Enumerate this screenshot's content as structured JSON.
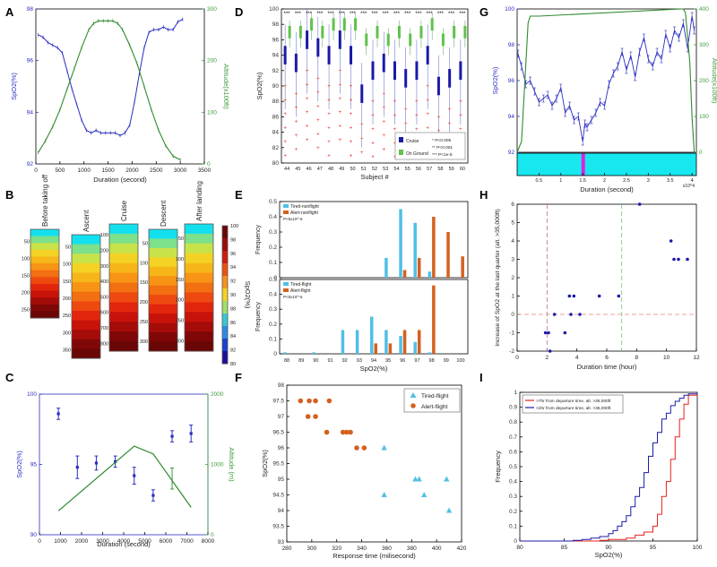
{
  "panels": [
    "A",
    "B",
    "C",
    "D",
    "E",
    "F",
    "G",
    "H",
    "I"
  ],
  "colors": {
    "blue": "#2a2ec0",
    "green": "#2e8b2e",
    "red": "#e8221b",
    "cyan": "#4fbfe6",
    "orange": "#d4601f",
    "darkblue": "#1a1aa8",
    "axis_green": "#3a9a3a",
    "magenta": "#e020e0",
    "cyan_band": "#17e8f0"
  },
  "chart_data": [
    {
      "id": "A",
      "type": "line",
      "xlabel": "Duration (second)",
      "ylabel": "SpO2(%)",
      "y2label": "Altitude(x100ft)",
      "xticks": [
        "0",
        "500",
        "1000",
        "1500",
        "2000",
        "2500",
        "3000",
        "3500"
      ],
      "yticks": [
        "92",
        "94",
        "96",
        "98"
      ],
      "y2ticks": [
        "0",
        "100",
        "200",
        "300"
      ],
      "xlim": [
        0,
        3500
      ],
      "ylim": [
        92,
        98
      ],
      "y2lim": [
        0,
        300
      ],
      "series": [
        {
          "name": "SpO2",
          "axis": "left",
          "x": [
            50,
            150,
            250,
            350,
            450,
            550,
            650,
            750,
            850,
            950,
            1050,
            1150,
            1250,
            1350,
            1450,
            1550,
            1650,
            1750,
            1850,
            1950,
            2050,
            2150,
            2250,
            2350,
            2450,
            2550,
            2650,
            2750,
            2850,
            2950,
            3050
          ],
          "values": [
            97.0,
            96.9,
            96.7,
            96.6,
            96.5,
            96.3,
            95.6,
            94.9,
            94.3,
            93.7,
            93.3,
            93.2,
            93.3,
            93.2,
            93.2,
            93.2,
            93.2,
            93.1,
            93.2,
            93.5,
            94.4,
            95.5,
            96.5,
            97.1,
            97.2,
            97.2,
            97.3,
            97.2,
            97.2,
            97.5,
            97.6
          ]
        },
        {
          "name": "Altitude",
          "axis": "right",
          "x": [
            50,
            200,
            350,
            500,
            650,
            800,
            950,
            1100,
            1200,
            1300,
            1400,
            1500,
            1600,
            1700,
            1800,
            1950,
            2100,
            2250,
            2400,
            2550,
            2700,
            2850,
            3000
          ],
          "values": [
            22,
            45,
            72,
            105,
            145,
            185,
            225,
            260,
            272,
            277,
            277,
            277,
            277,
            272,
            260,
            230,
            195,
            150,
            105,
            65,
            35,
            15,
            8
          ]
        }
      ]
    },
    {
      "id": "B",
      "type": "heatmap",
      "columns": [
        "Before taking off",
        "Ascent",
        "Cruise",
        "Descent",
        "After landing"
      ],
      "ytick_sets": [
        [
          "50",
          "100",
          "150",
          "200",
          "250"
        ],
        [
          "50",
          "100",
          "150",
          "200",
          "250",
          "300",
          "350"
        ],
        [
          "100",
          "200",
          "300",
          "400",
          "500",
          "600",
          "700",
          "800"
        ],
        [
          "50",
          "100",
          "150",
          "200",
          "250",
          "300"
        ],
        [
          "50",
          "100",
          "150",
          "200",
          "250",
          "300"
        ]
      ],
      "colorbar": {
        "label": "SpO2(%)",
        "ticks": [
          "80",
          "82",
          "84",
          "86",
          "88",
          "90",
          "92",
          "94",
          "96",
          "98",
          "100"
        ]
      }
    },
    {
      "id": "C",
      "type": "errorbar-line",
      "xlabel": "Duration (second)",
      "ylabel": "SpO2(%)",
      "y2label": "Altitude (m)",
      "xticks": [
        "0",
        "1000",
        "2000",
        "3000",
        "4000",
        "5000",
        "6000",
        "7000",
        "8000"
      ],
      "yticks": [
        "90",
        "95",
        "100"
      ],
      "y2ticks": [
        "0",
        "1000",
        "2000"
      ],
      "xlim": [
        0,
        8000
      ],
      "ylim": [
        90,
        100
      ],
      "y2lim": [
        0,
        2000
      ],
      "series": [
        {
          "name": "SpO2",
          "axis": "left",
          "x": [
            900,
            1800,
            2700,
            3600,
            4500,
            5400,
            6300,
            7200
          ],
          "values": [
            98.6,
            94.8,
            95.1,
            95.2,
            94.2,
            92.8,
            97.0,
            97.2
          ],
          "err": [
            0.4,
            0.8,
            0.5,
            0.4,
            0.6,
            0.4,
            0.4,
            0.6
          ]
        },
        {
          "name": "Altitude",
          "axis": "right",
          "x": [
            900,
            4500,
            5400,
            7200
          ],
          "values": [
            340,
            1260,
            1150,
            390
          ],
          "err": [
            0,
            0,
            0,
            0
          ]
        },
        {
          "name": "AltitudeErr",
          "axis": "right",
          "x": [
            4500,
            5400,
            6300
          ],
          "values": [
            1260,
            1150,
            800
          ],
          "err": [
            0,
            0,
            150
          ]
        }
      ]
    },
    {
      "id": "D",
      "type": "boxplot",
      "xlabel": "Subject #",
      "ylabel": "SpO2(%)",
      "ylim": [
        80,
        100
      ],
      "yticks": [
        "80",
        "82",
        "84",
        "86",
        "88",
        "90",
        "92",
        "94",
        "96",
        "98",
        "100"
      ],
      "xticks": [
        "44",
        "45",
        "46",
        "47",
        "48",
        "49",
        "50",
        "51",
        "52",
        "53",
        "54",
        "55",
        "56",
        "57",
        "58",
        "59",
        "60"
      ],
      "legend": [
        "Cruise",
        "On Ground"
      ],
      "notes": [
        "* P<0.005",
        "** P<0.001",
        "*** P<1e-5"
      ],
      "series": [
        {
          "name": "Cruise",
          "median": [
            94,
            93,
            96,
            95,
            94,
            96,
            94,
            89,
            92,
            93,
            92,
            91,
            92,
            94,
            90,
            91,
            92
          ]
        },
        {
          "name": "On Ground",
          "median": [
            97,
            97,
            98,
            97,
            98,
            98,
            98,
            96,
            97,
            96,
            97,
            96,
            97,
            98,
            96,
            97,
            97
          ]
        }
      ]
    },
    {
      "id": "E",
      "type": "bar",
      "xlabel": "SpO2(%)",
      "ylabel": "Frequency",
      "categories": [
        "88",
        "89",
        "90",
        "91",
        "92",
        "93",
        "94",
        "95",
        "96",
        "97",
        "98",
        "99",
        "100"
      ],
      "subplots": [
        {
          "legend": [
            "Tired-nonflight",
            "Alert-nonflight"
          ],
          "p": "P<5x10^-6",
          "yticks": [
            "0",
            "0.1",
            "0.2",
            "0.3",
            "0.4",
            "0.5"
          ],
          "ylim": [
            0,
            0.5
          ],
          "series": [
            {
              "name": "Tired-nonflight",
              "values": [
                0,
                0,
                0,
                0,
                0,
                0,
                0,
                0.13,
                0.45,
                0.36,
                0.04,
                0,
                0
              ]
            },
            {
              "name": "Alert-nonflight",
              "values": [
                0,
                0,
                0,
                0,
                0,
                0,
                0,
                0,
                0.05,
                0.13,
                0.4,
                0.3,
                0.14
              ]
            }
          ]
        },
        {
          "legend": [
            "Tired-flight",
            "Alert-flight"
          ],
          "p": "P<5x10^-6",
          "yticks": [
            "0",
            "0.1",
            "0.2",
            "0.3",
            "0.4",
            "0.5"
          ],
          "ylim": [
            0,
            0.5
          ],
          "series": [
            {
              "name": "Tired-flight",
              "values": [
                0.01,
                0,
                0.01,
                0,
                0.16,
                0.16,
                0.25,
                0.16,
                0.12,
                0.08,
                0.01,
                0,
                0
              ]
            },
            {
              "name": "Alert-flight",
              "values": [
                0,
                0,
                0,
                0,
                0,
                0,
                0.07,
                0.07,
                0.16,
                0.16,
                0.46,
                0,
                0
              ]
            }
          ]
        }
      ]
    },
    {
      "id": "F",
      "type": "scatter",
      "xlabel": "Response time (milisecond)",
      "ylabel": "SpO2(%)",
      "xticks": [
        "280",
        "300",
        "320",
        "340",
        "360",
        "380",
        "400",
        "420"
      ],
      "yticks": [
        "93",
        "93.5",
        "94",
        "94.5",
        "95",
        "95.5",
        "96",
        "96.5",
        "97",
        "97.5",
        "98"
      ],
      "xlim": [
        280,
        420
      ],
      "ylim": [
        93,
        98
      ],
      "legend": [
        "Tired-flight",
        "Alert-flight"
      ],
      "series": [
        {
          "name": "Tired-flight",
          "x": [
            358,
            358,
            383,
            386,
            390,
            408,
            410
          ],
          "values": [
            96.0,
            94.5,
            95.0,
            95.0,
            94.5,
            95.0,
            94.0
          ]
        },
        {
          "name": "Alert-flight",
          "x": [
            291,
            297,
            298,
            303,
            303,
            312,
            314,
            325,
            328,
            331,
            336,
            342
          ],
          "values": [
            97.5,
            97.0,
            97.5,
            97.0,
            97.5,
            96.5,
            97.5,
            96.5,
            96.5,
            96.5,
            96.0,
            96.0
          ]
        }
      ]
    },
    {
      "id": "G",
      "type": "line",
      "xlabel": "Duration (second)",
      "ylabel": "SpO2(%)",
      "y2label": "Altitude(x100ft)",
      "xticks": [
        "0.5",
        "1",
        "1.5",
        "2",
        "2.5",
        "3",
        "3.5",
        "4"
      ],
      "xexp": "x10^4",
      "yticks": [
        "92",
        "94",
        "96",
        "98",
        "100"
      ],
      "y2ticks": [
        "0",
        "100",
        "200",
        "300",
        "400"
      ],
      "xlim": [
        0,
        4.1
      ],
      "ylim": [
        92,
        100
      ],
      "y2lim": [
        0,
        400
      ],
      "series": [
        {
          "name": "SpO2",
          "axis": "left",
          "x": [
            0.02,
            0.1,
            0.2,
            0.3,
            0.4,
            0.5,
            0.6,
            0.7,
            0.8,
            0.9,
            1.0,
            1.1,
            1.2,
            1.3,
            1.4,
            1.5,
            1.55,
            1.6,
            1.7,
            1.8,
            1.9,
            2.0,
            2.1,
            2.2,
            2.3,
            2.4,
            2.5,
            2.6,
            2.7,
            2.8,
            2.9,
            3.0,
            3.1,
            3.2,
            3.3,
            3.4,
            3.5,
            3.6,
            3.7,
            3.8,
            3.9,
            4.0,
            4.05
          ],
          "values": [
            97.5,
            96.8,
            95.8,
            96.0,
            95.4,
            94.8,
            95.0,
            95.2,
            94.6,
            95.0,
            95.6,
            94.2,
            94.6,
            93.8,
            94.0,
            92.6,
            93.6,
            93.4,
            93.8,
            94.2,
            94.8,
            94.6,
            95.8,
            96.4,
            96.8,
            97.6,
            96.6,
            97.4,
            96.2,
            97.6,
            98.4,
            97.2,
            96.8,
            97.6,
            97.2,
            98.6,
            97.8,
            98.8,
            98.4,
            99.2,
            97.8,
            99.6,
            98.8
          ]
        },
        {
          "name": "Altitude",
          "axis": "right",
          "x": [
            0,
            0.1,
            0.2,
            0.25,
            0.3,
            0.5,
            3.75,
            3.8,
            3.85,
            3.95,
            4.0,
            4.05
          ],
          "values": [
            0,
            30,
            250,
            360,
            380,
            380,
            400,
            400,
            390,
            250,
            100,
            0
          ]
        }
      ]
    },
    {
      "id": "H",
      "type": "scatter",
      "xlabel": "Duration time (hour)",
      "ylabel": "Increase of SpO2 at the last quarter (alt. >35,000ft)",
      "xticks": [
        "0",
        "2",
        "4",
        "6",
        "8",
        "10",
        "12"
      ],
      "yticks": [
        "-2",
        "-1",
        "0",
        "1",
        "2",
        "3",
        "4",
        "5",
        "6"
      ],
      "xlim": [
        0,
        12
      ],
      "ylim": [
        -2,
        6
      ],
      "series": [
        {
          "name": "subjects",
          "x": [
            1.9,
            2.1,
            2.2,
            2.5,
            3.2,
            3.5,
            3.6,
            3.8,
            4.2,
            5.5,
            6.8,
            8.2,
            10.3,
            10.5,
            10.8,
            11.4
          ],
          "values": [
            -1,
            -1,
            -2,
            0,
            -1,
            1,
            0,
            1,
            0,
            1,
            1,
            6,
            4,
            3,
            3,
            3
          ]
        }
      ],
      "vlines": [
        2,
        7
      ],
      "hline": 0
    },
    {
      "id": "I",
      "type": "line",
      "xlabel": "SpO2(%)",
      "ylabel": "Frequency",
      "xticks": [
        "80",
        "85",
        "90",
        "95",
        "100"
      ],
      "yticks": [
        "0",
        "0.1",
        "0.2",
        "0.3",
        "0.4",
        "0.5",
        "0.6",
        "0.7",
        "0.8",
        "0.9",
        "1"
      ],
      "xlim": [
        80,
        100
      ],
      "ylim": [
        0,
        1
      ],
      "legend": [
        ">7hr from departure time, alt. >35,000ft",
        "<2hr from departure time, alt. >35,000ft"
      ],
      "series": [
        {
          "name": ">7hr",
          "x": [
            80,
            86,
            88,
            89,
            90,
            91,
            92,
            93,
            94,
            95,
            95.5,
            96,
            96.5,
            97,
            97.5,
            98,
            98.5,
            99,
            100
          ],
          "values": [
            0,
            0,
            0,
            0.005,
            0.01,
            0.01,
            0.02,
            0.04,
            0.06,
            0.1,
            0.18,
            0.3,
            0.4,
            0.55,
            0.7,
            0.82,
            0.92,
            0.98,
            1
          ]
        },
        {
          "name": "<2hr",
          "x": [
            80,
            85,
            86,
            87,
            88,
            89,
            90,
            90.5,
            91,
            91.5,
            92,
            92.5,
            93,
            93.5,
            94,
            94.5,
            95,
            95.5,
            96,
            96.5,
            97,
            97.5,
            98,
            98.5,
            99,
            100
          ],
          "values": [
            0,
            0,
            0.005,
            0.01,
            0.02,
            0.03,
            0.05,
            0.07,
            0.1,
            0.13,
            0.17,
            0.23,
            0.3,
            0.36,
            0.46,
            0.57,
            0.66,
            0.73,
            0.82,
            0.86,
            0.91,
            0.94,
            0.96,
            0.98,
            0.99,
            1
          ]
        }
      ]
    }
  ]
}
